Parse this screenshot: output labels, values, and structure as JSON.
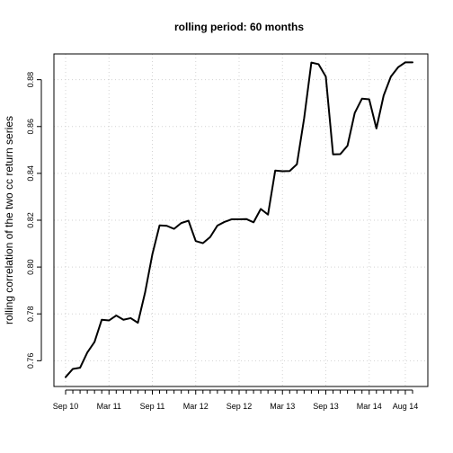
{
  "chart_data": {
    "type": "line",
    "title": "rolling period: 60 months",
    "xlabel": "",
    "ylabel": "rolling correlation of the two cc return series",
    "ylim": [
      0.749,
      0.891
    ],
    "yticks": [
      0.76,
      0.78,
      0.8,
      0.82,
      0.84,
      0.86,
      0.88
    ],
    "ytick_labels": [
      "0.76",
      "0.78",
      "0.80",
      "0.82",
      "0.84",
      "0.86",
      "0.88"
    ],
    "x_dates": [
      "2010-09",
      "2010-10",
      "2010-11",
      "2010-12",
      "2011-01",
      "2011-02",
      "2011-03",
      "2011-04",
      "2011-05",
      "2011-06",
      "2011-07",
      "2011-08",
      "2011-09",
      "2011-10",
      "2011-11",
      "2011-12",
      "2012-01",
      "2012-02",
      "2012-03",
      "2012-04",
      "2012-05",
      "2012-06",
      "2012-07",
      "2012-08",
      "2012-09",
      "2012-10",
      "2012-11",
      "2012-12",
      "2013-01",
      "2013-02",
      "2013-03",
      "2013-04",
      "2013-05",
      "2013-06",
      "2013-07",
      "2013-08",
      "2013-09",
      "2013-10",
      "2013-11",
      "2013-12",
      "2014-01",
      "2014-02",
      "2014-03",
      "2014-04",
      "2014-05",
      "2014-06",
      "2014-07",
      "2014-08",
      "2014-09"
    ],
    "x_labeled_ticks": [
      "2010-09",
      "2011-03",
      "2011-09",
      "2012-03",
      "2012-09",
      "2013-03",
      "2013-09",
      "2014-03",
      "2014-08"
    ],
    "xtick_labels": [
      "Sep 10",
      "Mar 11",
      "Sep 11",
      "Mar 12",
      "Sep 12",
      "Mar 13",
      "Sep 13",
      "Mar 14",
      "Aug 14"
    ],
    "series": [
      {
        "color": "#000000",
        "values": [
          0.753,
          0.7565,
          0.757,
          0.7635,
          0.768,
          0.7775,
          0.7772,
          0.7793,
          0.7775,
          0.7782,
          0.7762,
          0.7892,
          0.8054,
          0.8178,
          0.8176,
          0.8163,
          0.8188,
          0.8198,
          0.8111,
          0.8102,
          0.8128,
          0.8177,
          0.8193,
          0.8204,
          0.8204,
          0.8205,
          0.8191,
          0.8248,
          0.8224,
          0.8412,
          0.8409,
          0.841,
          0.8439,
          0.8635,
          0.8873,
          0.8866,
          0.8813,
          0.8481,
          0.8482,
          0.8518,
          0.8658,
          0.8719,
          0.8716,
          0.8592,
          0.8732,
          0.8813,
          0.8853,
          0.8874,
          0.8874
        ]
      }
    ],
    "grid": true,
    "legend": "none"
  }
}
